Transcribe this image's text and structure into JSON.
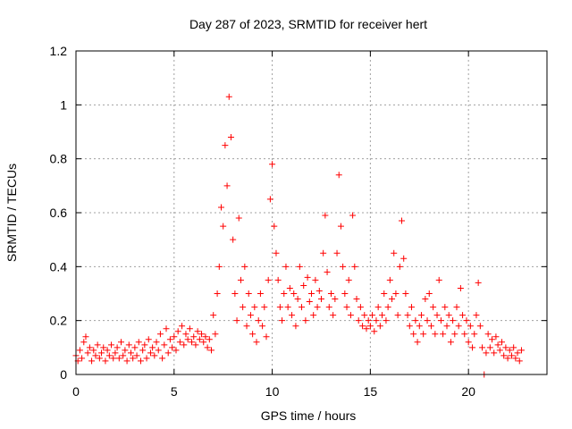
{
  "chart_data": {
    "type": "scatter",
    "title": "Day 287 of 2023, SRMTID for receiver hert",
    "xlabel": "GPS time / hours",
    "ylabel": "SRMTID / TECUs",
    "xlim": [
      0,
      24
    ],
    "ylim": [
      0,
      1.2
    ],
    "x_ticks": [
      "0",
      "5",
      "10",
      "15",
      "20"
    ],
    "x_tick_values": [
      0,
      5,
      10,
      15,
      20
    ],
    "y_ticks": [
      "0",
      "0.2",
      "0.4",
      "0.6",
      "0.8",
      "1",
      "1.2"
    ],
    "y_tick_values": [
      0,
      0.2,
      0.4,
      0.6,
      0.8,
      1.0,
      1.2
    ],
    "grid": true,
    "marker": "plus",
    "color": "#ff0000",
    "series": [
      {
        "name": "SRMTID",
        "points": [
          [
            0.0,
            0.07
          ],
          [
            0.1,
            0.05
          ],
          [
            0.2,
            0.09
          ],
          [
            0.3,
            0.06
          ],
          [
            0.4,
            0.12
          ],
          [
            0.5,
            0.14
          ],
          [
            0.6,
            0.08
          ],
          [
            0.7,
            0.1
          ],
          [
            0.8,
            0.05
          ],
          [
            0.9,
            0.09
          ],
          [
            1.0,
            0.07
          ],
          [
            1.1,
            0.11
          ],
          [
            1.2,
            0.06
          ],
          [
            1.3,
            0.08
          ],
          [
            1.4,
            0.1
          ],
          [
            1.5,
            0.05
          ],
          [
            1.6,
            0.09
          ],
          [
            1.7,
            0.07
          ],
          [
            1.8,
            0.11
          ],
          [
            1.9,
            0.06
          ],
          [
            2.0,
            0.08
          ],
          [
            2.1,
            0.1
          ],
          [
            2.2,
            0.06
          ],
          [
            2.3,
            0.12
          ],
          [
            2.4,
            0.07
          ],
          [
            2.5,
            0.09
          ],
          [
            2.6,
            0.05
          ],
          [
            2.7,
            0.11
          ],
          [
            2.8,
            0.08
          ],
          [
            2.9,
            0.06
          ],
          [
            3.0,
            0.1
          ],
          [
            3.1,
            0.07
          ],
          [
            3.2,
            0.12
          ],
          [
            3.3,
            0.05
          ],
          [
            3.4,
            0.09
          ],
          [
            3.5,
            0.11
          ],
          [
            3.6,
            0.06
          ],
          [
            3.7,
            0.13
          ],
          [
            3.8,
            0.08
          ],
          [
            3.9,
            0.1
          ],
          [
            4.0,
            0.07
          ],
          [
            4.1,
            0.12
          ],
          [
            4.2,
            0.09
          ],
          [
            4.3,
            0.15
          ],
          [
            4.4,
            0.06
          ],
          [
            4.5,
            0.11
          ],
          [
            4.6,
            0.17
          ],
          [
            4.7,
            0.08
          ],
          [
            4.8,
            0.13
          ],
          [
            4.9,
            0.1
          ],
          [
            5.0,
            0.14
          ],
          [
            5.1,
            0.09
          ],
          [
            5.2,
            0.16
          ],
          [
            5.3,
            0.12
          ],
          [
            5.4,
            0.18
          ],
          [
            5.5,
            0.11
          ],
          [
            5.6,
            0.15
          ],
          [
            5.7,
            0.13
          ],
          [
            5.8,
            0.17
          ],
          [
            5.9,
            0.12
          ],
          [
            6.0,
            0.14
          ],
          [
            6.1,
            0.11
          ],
          [
            6.2,
            0.16
          ],
          [
            6.3,
            0.13
          ],
          [
            6.4,
            0.15
          ],
          [
            6.5,
            0.12
          ],
          [
            6.6,
            0.14
          ],
          [
            6.7,
            0.1
          ],
          [
            6.8,
            0.13
          ],
          [
            6.9,
            0.09
          ],
          [
            7.0,
            0.22
          ],
          [
            7.1,
            0.15
          ],
          [
            7.2,
            0.3
          ],
          [
            7.3,
            0.4
          ],
          [
            7.4,
            0.62
          ],
          [
            7.5,
            0.55
          ],
          [
            7.6,
            0.85
          ],
          [
            7.7,
            0.7
          ],
          [
            7.8,
            1.03
          ],
          [
            7.9,
            0.88
          ],
          [
            8.0,
            0.5
          ],
          [
            8.1,
            0.3
          ],
          [
            8.2,
            0.2
          ],
          [
            8.3,
            0.58
          ],
          [
            8.4,
            0.35
          ],
          [
            8.5,
            0.25
          ],
          [
            8.6,
            0.4
          ],
          [
            8.7,
            0.18
          ],
          [
            8.8,
            0.3
          ],
          [
            8.9,
            0.22
          ],
          [
            9.0,
            0.15
          ],
          [
            9.1,
            0.25
          ],
          [
            9.2,
            0.12
          ],
          [
            9.3,
            0.2
          ],
          [
            9.4,
            0.3
          ],
          [
            9.5,
            0.18
          ],
          [
            9.6,
            0.25
          ],
          [
            9.7,
            0.14
          ],
          [
            9.8,
            0.35
          ],
          [
            9.9,
            0.65
          ],
          [
            10.0,
            0.78
          ],
          [
            10.1,
            0.55
          ],
          [
            10.2,
            0.45
          ],
          [
            10.3,
            0.35
          ],
          [
            10.4,
            0.25
          ],
          [
            10.5,
            0.2
          ],
          [
            10.6,
            0.3
          ],
          [
            10.7,
            0.4
          ],
          [
            10.8,
            0.25
          ],
          [
            10.9,
            0.32
          ],
          [
            11.0,
            0.22
          ],
          [
            11.1,
            0.3
          ],
          [
            11.2,
            0.18
          ],
          [
            11.3,
            0.28
          ],
          [
            11.4,
            0.4
          ],
          [
            11.5,
            0.25
          ],
          [
            11.6,
            0.33
          ],
          [
            11.7,
            0.2
          ],
          [
            11.8,
            0.36
          ],
          [
            11.9,
            0.27
          ],
          [
            12.0,
            0.3
          ],
          [
            12.1,
            0.22
          ],
          [
            12.2,
            0.35
          ],
          [
            12.3,
            0.25
          ],
          [
            12.4,
            0.31
          ],
          [
            12.5,
            0.28
          ],
          [
            12.6,
            0.45
          ],
          [
            12.7,
            0.59
          ],
          [
            12.8,
            0.38
          ],
          [
            12.9,
            0.25
          ],
          [
            13.0,
            0.3
          ],
          [
            13.1,
            0.22
          ],
          [
            13.2,
            0.28
          ],
          [
            13.3,
            0.45
          ],
          [
            13.4,
            0.74
          ],
          [
            13.5,
            0.55
          ],
          [
            13.6,
            0.4
          ],
          [
            13.7,
            0.3
          ],
          [
            13.8,
            0.25
          ],
          [
            13.9,
            0.35
          ],
          [
            14.0,
            0.22
          ],
          [
            14.1,
            0.59
          ],
          [
            14.2,
            0.4
          ],
          [
            14.3,
            0.28
          ],
          [
            14.4,
            0.2
          ],
          [
            14.5,
            0.25
          ],
          [
            14.6,
            0.18
          ],
          [
            14.7,
            0.22
          ],
          [
            14.8,
            0.17
          ],
          [
            14.9,
            0.2
          ],
          [
            15.0,
            0.18
          ],
          [
            15.1,
            0.22
          ],
          [
            15.2,
            0.16
          ],
          [
            15.3,
            0.2
          ],
          [
            15.4,
            0.25
          ],
          [
            15.5,
            0.18
          ],
          [
            15.6,
            0.22
          ],
          [
            15.7,
            0.3
          ],
          [
            15.8,
            0.2
          ],
          [
            15.9,
            0.25
          ],
          [
            16.0,
            0.35
          ],
          [
            16.1,
            0.28
          ],
          [
            16.2,
            0.45
          ],
          [
            16.3,
            0.3
          ],
          [
            16.4,
            0.22
          ],
          [
            16.5,
            0.4
          ],
          [
            16.6,
            0.57
          ],
          [
            16.7,
            0.43
          ],
          [
            16.8,
            0.3
          ],
          [
            16.9,
            0.22
          ],
          [
            17.0,
            0.18
          ],
          [
            17.1,
            0.25
          ],
          [
            17.2,
            0.15
          ],
          [
            17.3,
            0.2
          ],
          [
            17.4,
            0.12
          ],
          [
            17.5,
            0.18
          ],
          [
            17.6,
            0.22
          ],
          [
            17.7,
            0.15
          ],
          [
            17.8,
            0.28
          ],
          [
            17.9,
            0.2
          ],
          [
            18.0,
            0.3
          ],
          [
            18.1,
            0.18
          ],
          [
            18.2,
            0.25
          ],
          [
            18.3,
            0.15
          ],
          [
            18.4,
            0.22
          ],
          [
            18.5,
            0.35
          ],
          [
            18.6,
            0.2
          ],
          [
            18.7,
            0.15
          ],
          [
            18.8,
            0.25
          ],
          [
            18.9,
            0.18
          ],
          [
            19.0,
            0.22
          ],
          [
            19.1,
            0.12
          ],
          [
            19.2,
            0.2
          ],
          [
            19.3,
            0.15
          ],
          [
            19.4,
            0.25
          ],
          [
            19.5,
            0.18
          ],
          [
            19.6,
            0.32
          ],
          [
            19.7,
            0.22
          ],
          [
            19.8,
            0.15
          ],
          [
            19.9,
            0.2
          ],
          [
            20.0,
            0.12
          ],
          [
            20.1,
            0.18
          ],
          [
            20.2,
            0.1
          ],
          [
            20.3,
            0.15
          ],
          [
            20.4,
            0.22
          ],
          [
            20.5,
            0.34
          ],
          [
            20.6,
            0.18
          ],
          [
            20.7,
            0.1
          ],
          [
            20.8,
            0.0
          ],
          [
            20.9,
            0.08
          ],
          [
            21.0,
            0.15
          ],
          [
            21.1,
            0.1
          ],
          [
            21.2,
            0.13
          ],
          [
            21.3,
            0.08
          ],
          [
            21.4,
            0.14
          ],
          [
            21.5,
            0.11
          ],
          [
            21.6,
            0.09
          ],
          [
            21.7,
            0.12
          ],
          [
            21.8,
            0.07
          ],
          [
            21.9,
            0.1
          ],
          [
            22.0,
            0.06
          ],
          [
            22.1,
            0.09
          ],
          [
            22.2,
            0.07
          ],
          [
            22.3,
            0.1
          ],
          [
            22.4,
            0.06
          ],
          [
            22.5,
            0.08
          ],
          [
            22.6,
            0.05
          ],
          [
            22.7,
            0.09
          ]
        ]
      }
    ]
  }
}
